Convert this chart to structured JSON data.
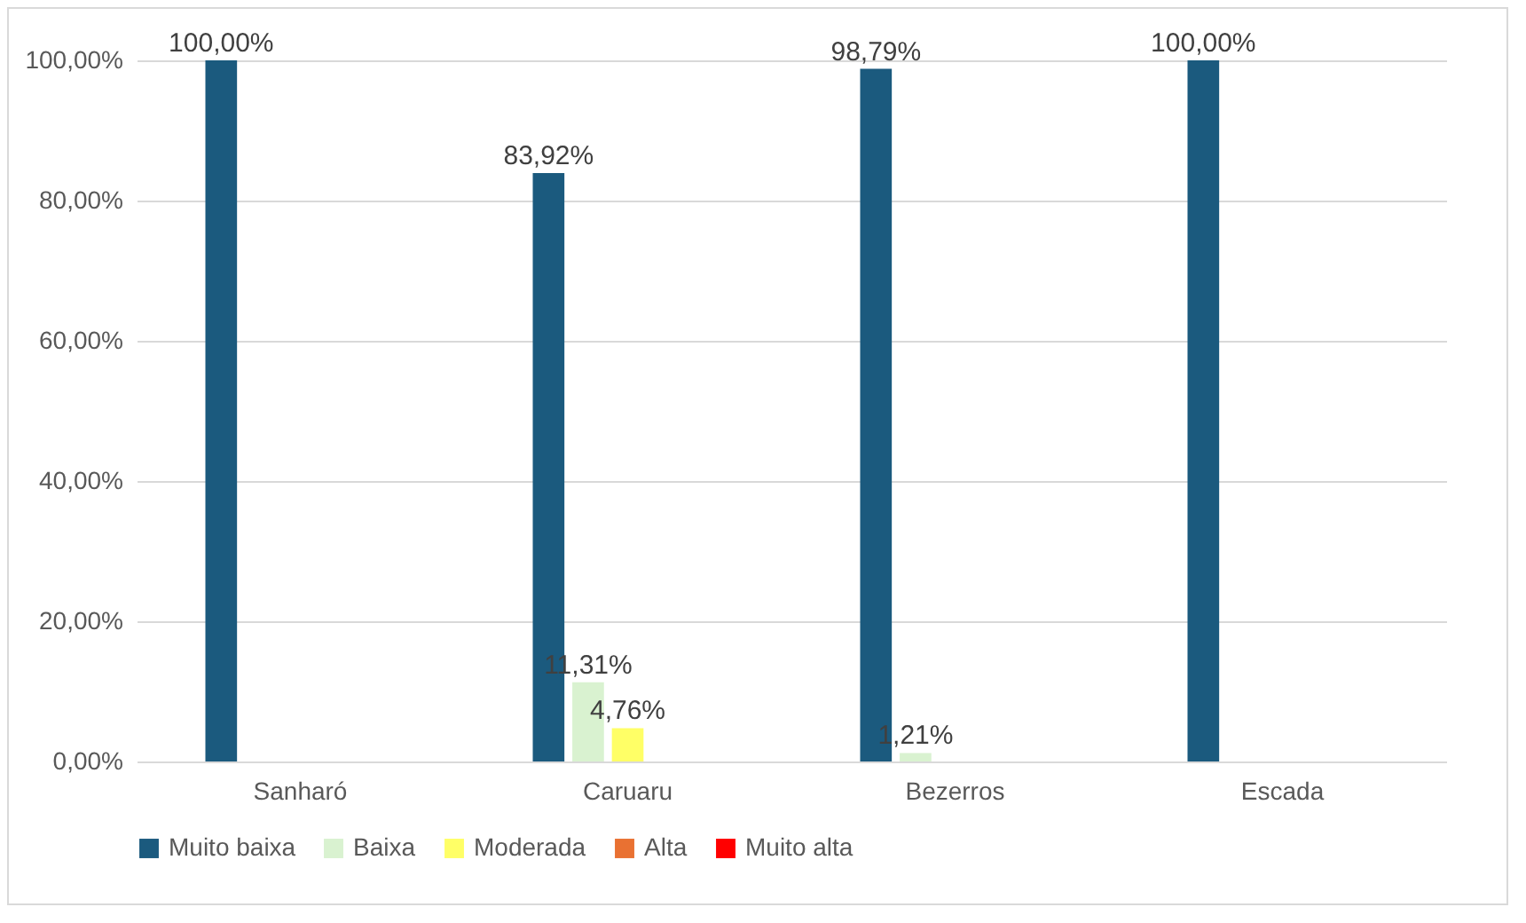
{
  "chart_data": {
    "type": "bar",
    "categories": [
      "Sanharó",
      "Caruaru",
      "Bezerros",
      "Escada"
    ],
    "series": [
      {
        "name": "Muito baixa",
        "color": "#1b5a7e",
        "values": [
          100,
          83.92,
          98.79,
          100
        ],
        "value_labels": [
          "100,00%",
          "83,92%",
          "98,79%",
          "100,00%"
        ]
      },
      {
        "name": "Baixa",
        "color": "#d9f2d0",
        "values": [
          0,
          11.31,
          1.21,
          0
        ],
        "value_labels": [
          null,
          "11,31%",
          "1,21%",
          null
        ]
      },
      {
        "name": "Moderada",
        "color": "#ffff66",
        "values": [
          0,
          4.76,
          0,
          0
        ],
        "value_labels": [
          null,
          "4,76%",
          null,
          null
        ]
      },
      {
        "name": "Alta",
        "color": "#e97132",
        "values": [
          0,
          0,
          0,
          0
        ],
        "value_labels": [
          null,
          null,
          null,
          null
        ]
      },
      {
        "name": "Muito alta",
        "color": "#ff0000",
        "values": [
          0,
          0,
          0,
          0
        ],
        "value_labels": [
          null,
          null,
          null,
          null
        ]
      }
    ],
    "ylim": [
      0,
      100
    ],
    "yticks": [
      {
        "value": 0,
        "label": "0,00%"
      },
      {
        "value": 20,
        "label": "20,00%"
      },
      {
        "value": 40,
        "label": "40,00%"
      },
      {
        "value": 60,
        "label": "60,00%"
      },
      {
        "value": 80,
        "label": "80,00%"
      },
      {
        "value": 100,
        "label": "100,00%"
      }
    ],
    "grid": true,
    "legend": "bottom"
  }
}
